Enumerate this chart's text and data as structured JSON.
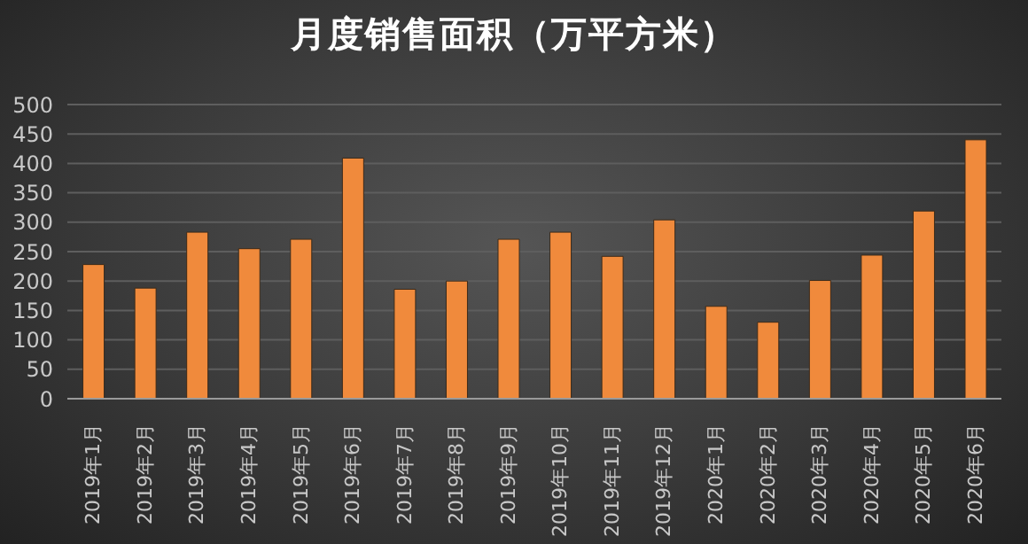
{
  "chart_data": {
    "type": "bar",
    "title": "月度销售面积（万平方米）",
    "categories": [
      "2019年1月",
      "2019年2月",
      "2019年3月",
      "2019年4月",
      "2019年5月",
      "2019年6月",
      "2019年7月",
      "2019年8月",
      "2019年9月",
      "2019年10月",
      "2019年11月",
      "2019年12月",
      "2020年1月",
      "2020年2月",
      "2020年3月",
      "2020年4月",
      "2020年5月",
      "2020年6月"
    ],
    "values": [
      228,
      188,
      283,
      255,
      271,
      409,
      186,
      200,
      271,
      283,
      242,
      304,
      157,
      130,
      201,
      244,
      319,
      440
    ],
    "color": "#f08a3c",
    "ylim": [
      0,
      500
    ],
    "yticks": [
      0,
      50,
      100,
      150,
      200,
      250,
      300,
      350,
      400,
      450,
      500
    ],
    "grid": "y"
  }
}
